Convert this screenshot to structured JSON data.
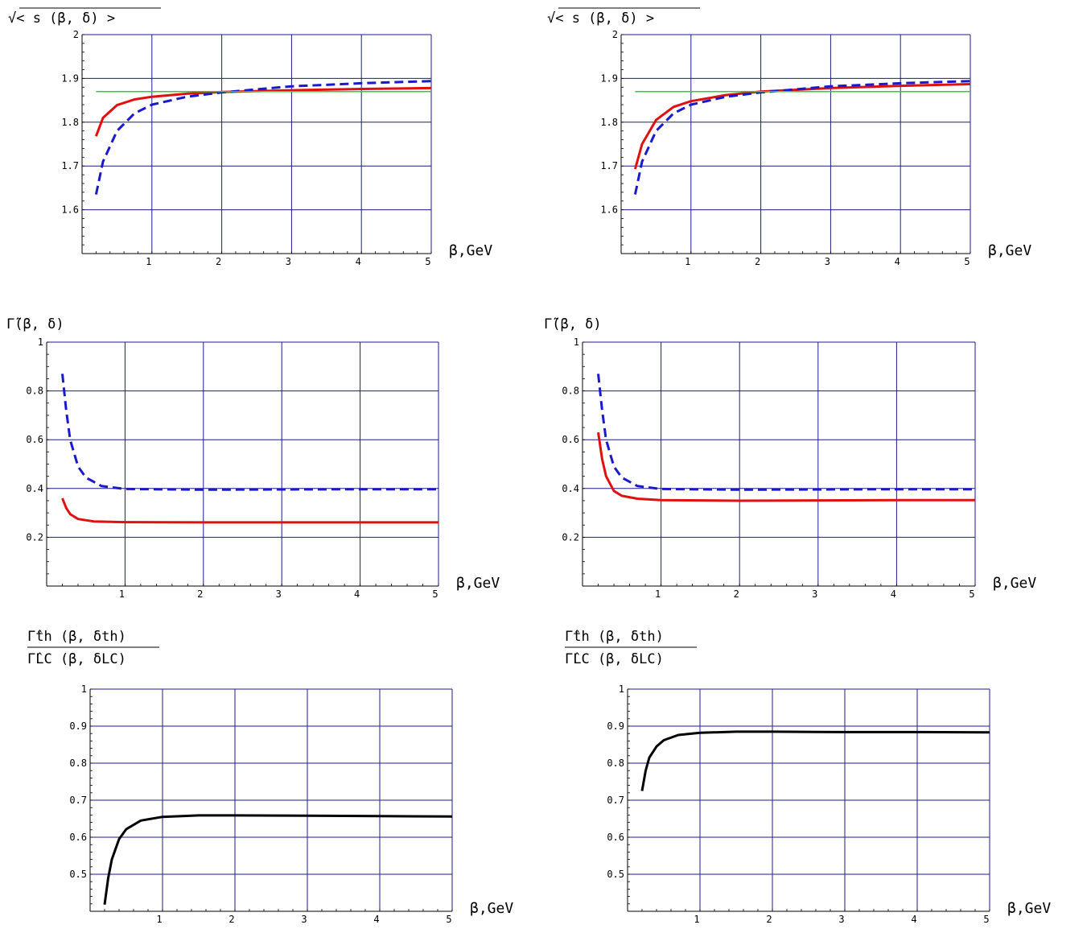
{
  "chart_data": [
    {
      "type": "line",
      "ylabel": "√< s (β, δ) >",
      "xlabel": "β,GeV",
      "xlim": [
        0,
        5
      ],
      "ylim": [
        1.5,
        2.0
      ],
      "xticks": [
        "1",
        "2",
        "3",
        "4",
        "5"
      ],
      "yticks": [
        "1.6",
        "1.7",
        "1.8",
        "1.9",
        "2"
      ],
      "grid": true,
      "series": [
        {
          "color": "#e01010",
          "style": "solid",
          "points": [
            [
              0.2,
              1.768
            ],
            [
              0.3,
              1.81
            ],
            [
              0.5,
              1.839
            ],
            [
              0.75,
              1.852
            ],
            [
              1.0,
              1.858
            ],
            [
              1.5,
              1.865
            ],
            [
              2.0,
              1.869
            ],
            [
              3.0,
              1.873
            ],
            [
              4.0,
              1.876
            ],
            [
              5.0,
              1.878
            ]
          ]
        },
        {
          "color": "#1a1acc",
          "style": "dashed",
          "points": [
            [
              0.2,
              1.635
            ],
            [
              0.3,
              1.71
            ],
            [
              0.5,
              1.78
            ],
            [
              0.75,
              1.82
            ],
            [
              1.0,
              1.84
            ],
            [
              1.5,
              1.858
            ],
            [
              2.0,
              1.868
            ],
            [
              2.5,
              1.875
            ],
            [
              3.0,
              1.882
            ],
            [
              4.0,
              1.889
            ],
            [
              5.0,
              1.894
            ]
          ]
        },
        {
          "color": "#33cc33",
          "style": "solid",
          "points": [
            [
              0.2,
              1.87
            ],
            [
              5.0,
              1.87
            ]
          ]
        }
      ]
    },
    {
      "type": "line",
      "ylabel": "√< s (β, δ) >",
      "xlabel": "β,GeV",
      "xlim": [
        0,
        5
      ],
      "ylim": [
        1.5,
        2.0
      ],
      "xticks": [
        "1",
        "2",
        "3",
        "4",
        "5"
      ],
      "yticks": [
        "1.6",
        "1.7",
        "1.8",
        "1.9",
        "2"
      ],
      "grid": true,
      "series": [
        {
          "color": "#e01010",
          "style": "solid",
          "points": [
            [
              0.2,
              1.693
            ],
            [
              0.3,
              1.75
            ],
            [
              0.5,
              1.805
            ],
            [
              0.75,
              1.835
            ],
            [
              1.0,
              1.848
            ],
            [
              1.5,
              1.862
            ],
            [
              2.0,
              1.87
            ],
            [
              3.0,
              1.878
            ],
            [
              4.0,
              1.883
            ],
            [
              5.0,
              1.887
            ]
          ]
        },
        {
          "color": "#1a1acc",
          "style": "dashed",
          "points": [
            [
              0.2,
              1.635
            ],
            [
              0.3,
              1.71
            ],
            [
              0.5,
              1.78
            ],
            [
              0.75,
              1.82
            ],
            [
              1.0,
              1.84
            ],
            [
              1.5,
              1.858
            ],
            [
              2.0,
              1.868
            ],
            [
              2.5,
              1.875
            ],
            [
              3.0,
              1.882
            ],
            [
              4.0,
              1.889
            ],
            [
              5.0,
              1.894
            ]
          ]
        },
        {
          "color": "#33cc33",
          "style": "solid",
          "points": [
            [
              0.2,
              1.87
            ],
            [
              5.0,
              1.87
            ]
          ]
        }
      ]
    },
    {
      "type": "line",
      "ylabel": "Γ̃(β, δ)",
      "xlabel": "β,GeV",
      "xlim": [
        0,
        5
      ],
      "ylim": [
        0,
        1
      ],
      "xticks": [
        "1",
        "2",
        "3",
        "4",
        "5"
      ],
      "yticks": [
        "0.2",
        "0.4",
        "0.6",
        "0.8",
        "1"
      ],
      "grid": true,
      "series": [
        {
          "color": "#e01010",
          "style": "solid",
          "points": [
            [
              0.2,
              0.36
            ],
            [
              0.25,
              0.32
            ],
            [
              0.3,
              0.295
            ],
            [
              0.4,
              0.275
            ],
            [
              0.6,
              0.265
            ],
            [
              1.0,
              0.262
            ],
            [
              2.0,
              0.261
            ],
            [
              3.0,
              0.261
            ],
            [
              4.0,
              0.261
            ],
            [
              5.0,
              0.261
            ]
          ]
        },
        {
          "color": "#1a1acc",
          "style": "dashed",
          "points": [
            [
              0.2,
              0.87
            ],
            [
              0.25,
              0.72
            ],
            [
              0.3,
              0.6
            ],
            [
              0.4,
              0.49
            ],
            [
              0.5,
              0.445
            ],
            [
              0.7,
              0.41
            ],
            [
              1.0,
              0.398
            ],
            [
              2.0,
              0.395
            ],
            [
              3.0,
              0.396
            ],
            [
              4.0,
              0.397
            ],
            [
              5.0,
              0.397
            ]
          ]
        }
      ]
    },
    {
      "type": "line",
      "ylabel": "Γ̃(β, δ)",
      "xlabel": "β,GeV",
      "xlim": [
        0,
        5
      ],
      "ylim": [
        0,
        1
      ],
      "xticks": [
        "1",
        "2",
        "3",
        "4",
        "5"
      ],
      "yticks": [
        "0.2",
        "0.4",
        "0.6",
        "0.8",
        "1"
      ],
      "grid": true,
      "series": [
        {
          "color": "#e01010",
          "style": "solid",
          "points": [
            [
              0.2,
              0.63
            ],
            [
              0.25,
              0.52
            ],
            [
              0.3,
              0.45
            ],
            [
              0.4,
              0.39
            ],
            [
              0.5,
              0.37
            ],
            [
              0.7,
              0.358
            ],
            [
              1.0,
              0.352
            ],
            [
              2.0,
              0.35
            ],
            [
              3.0,
              0.351
            ],
            [
              4.0,
              0.352
            ],
            [
              5.0,
              0.352
            ]
          ]
        },
        {
          "color": "#1a1acc",
          "style": "dashed",
          "points": [
            [
              0.2,
              0.87
            ],
            [
              0.25,
              0.72
            ],
            [
              0.3,
              0.6
            ],
            [
              0.4,
              0.49
            ],
            [
              0.5,
              0.445
            ],
            [
              0.7,
              0.41
            ],
            [
              1.0,
              0.398
            ],
            [
              2.0,
              0.395
            ],
            [
              3.0,
              0.396
            ],
            [
              4.0,
              0.397
            ],
            [
              5.0,
              0.397
            ]
          ]
        }
      ]
    },
    {
      "type": "line",
      "ylabel_num": "Γ̂th (β, δth)",
      "ylabel_den": "Γ̂LC (β, δLC)",
      "xlabel": "β,GeV",
      "xlim": [
        0,
        5
      ],
      "ylim": [
        0.4,
        1.0
      ],
      "xticks": [
        "1",
        "2",
        "3",
        "4",
        "5"
      ],
      "yticks": [
        "0.5",
        "0.6",
        "0.7",
        "0.8",
        "0.9",
        "1"
      ],
      "grid": true,
      "series": [
        {
          "color": "#000000",
          "style": "solid",
          "points": [
            [
              0.2,
              0.418
            ],
            [
              0.25,
              0.49
            ],
            [
              0.3,
              0.54
            ],
            [
              0.4,
              0.595
            ],
            [
              0.5,
              0.622
            ],
            [
              0.7,
              0.645
            ],
            [
              1.0,
              0.655
            ],
            [
              1.5,
              0.659
            ],
            [
              2.0,
              0.659
            ],
            [
              3.0,
              0.658
            ],
            [
              4.0,
              0.657
            ],
            [
              5.0,
              0.656
            ]
          ]
        }
      ]
    },
    {
      "type": "line",
      "ylabel_num": "Γ̂th (β, δth)",
      "ylabel_den": "Γ̂LC (β, δLC)",
      "xlabel": "β,GeV",
      "xlim": [
        0,
        5
      ],
      "ylim": [
        0.4,
        1.0
      ],
      "xticks": [
        "1",
        "2",
        "3",
        "4",
        "5"
      ],
      "yticks": [
        "0.5",
        "0.6",
        "0.7",
        "0.8",
        "0.9",
        "1"
      ],
      "grid": true,
      "series": [
        {
          "color": "#000000",
          "style": "solid",
          "points": [
            [
              0.2,
              0.725
            ],
            [
              0.25,
              0.78
            ],
            [
              0.3,
              0.815
            ],
            [
              0.4,
              0.845
            ],
            [
              0.5,
              0.862
            ],
            [
              0.7,
              0.876
            ],
            [
              1.0,
              0.882
            ],
            [
              1.5,
              0.885
            ],
            [
              2.0,
              0.885
            ],
            [
              3.0,
              0.884
            ],
            [
              4.0,
              0.884
            ],
            [
              5.0,
              0.883
            ]
          ]
        }
      ]
    }
  ]
}
